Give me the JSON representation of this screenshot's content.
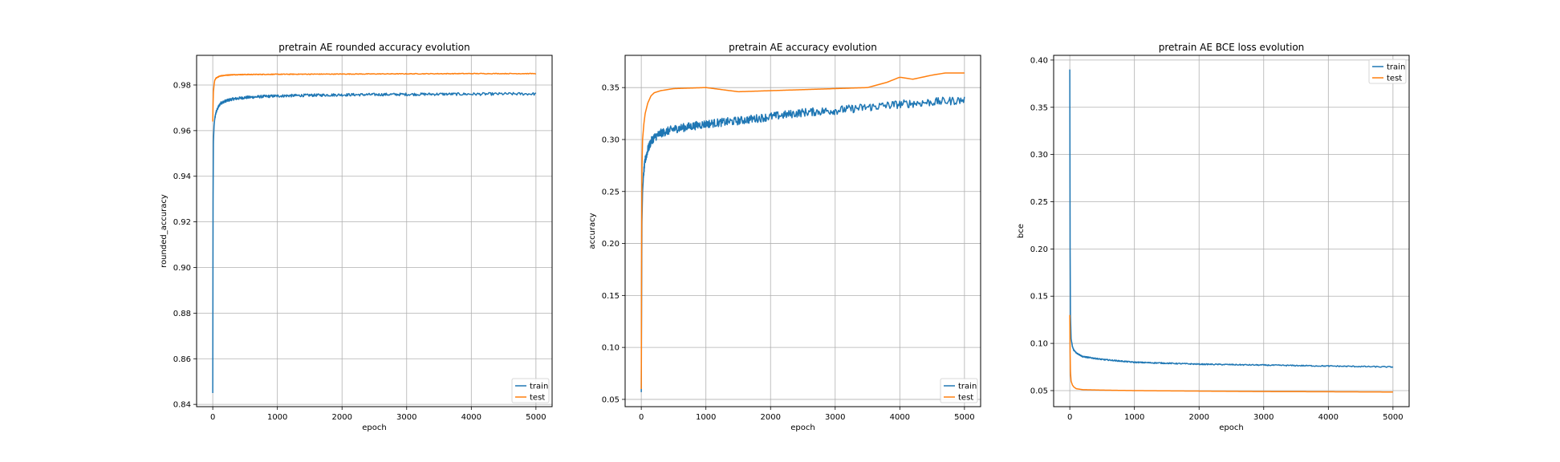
{
  "colors": {
    "train": "#1f77b4",
    "test": "#ff7f0e",
    "grid": "#b0b0b0"
  },
  "chart_data": [
    {
      "type": "line",
      "title": "pretrain AE rounded accuracy evolution",
      "xlabel": "epoch",
      "ylabel": "rounded_accuracy",
      "xlim": [
        -250,
        5250
      ],
      "ylim": [
        0.839,
        0.993
      ],
      "xticks": [
        0,
        1000,
        2000,
        3000,
        4000,
        5000
      ],
      "yticks": [
        0.84,
        0.86,
        0.88,
        0.9,
        0.92,
        0.94,
        0.96,
        0.98
      ],
      "ytick_labels": [
        "0.84",
        "0.86",
        "0.88",
        "0.90",
        "0.92",
        "0.94",
        "0.96",
        "0.98"
      ],
      "grid": true,
      "legend_position": "bottom-right",
      "series": [
        {
          "name": "train",
          "noise": 0.0006,
          "x": [
            0,
            5,
            10,
            20,
            30,
            50,
            80,
            120,
            200,
            300,
            500,
            800,
            1000,
            1500,
            2000,
            2500,
            3000,
            3500,
            4000,
            4500,
            5000
          ],
          "y": [
            0.845,
            0.93,
            0.955,
            0.962,
            0.965,
            0.968,
            0.97,
            0.972,
            0.973,
            0.9738,
            0.9745,
            0.975,
            0.9752,
            0.9755,
            0.9757,
            0.9758,
            0.9759,
            0.976,
            0.976,
            0.9761,
            0.9761
          ]
        },
        {
          "name": "test",
          "noise": 0.00015,
          "x": [
            0,
            5,
            10,
            20,
            30,
            50,
            80,
            120,
            200,
            300,
            500,
            1000,
            2000,
            3000,
            4000,
            5000
          ],
          "y": [
            0.964,
            0.972,
            0.977,
            0.98,
            0.982,
            0.983,
            0.9835,
            0.984,
            0.9843,
            0.9845,
            0.9846,
            0.9847,
            0.9848,
            0.9849,
            0.985,
            0.985
          ]
        }
      ]
    },
    {
      "type": "line",
      "title": "pretrain AE accuracy evolution",
      "xlabel": "epoch",
      "ylabel": "accuracy",
      "xlim": [
        -250,
        5250
      ],
      "ylim": [
        0.043,
        0.381
      ],
      "xticks": [
        0,
        1000,
        2000,
        3000,
        4000,
        5000
      ],
      "yticks": [
        0.05,
        0.1,
        0.15,
        0.2,
        0.25,
        0.3,
        0.35
      ],
      "ytick_labels": [
        "0.05",
        "0.10",
        "0.15",
        "0.20",
        "0.25",
        "0.30",
        "0.35"
      ],
      "grid": true,
      "legend_position": "bottom-right",
      "series": [
        {
          "name": "train",
          "noise": 0.004,
          "x": [
            0,
            5,
            10,
            20,
            40,
            60,
            100,
            150,
            200,
            300,
            500,
            1000,
            1500,
            2000,
            2500,
            3000,
            3500,
            4000,
            4500,
            5000
          ],
          "y": [
            0.057,
            0.15,
            0.22,
            0.25,
            0.27,
            0.28,
            0.29,
            0.298,
            0.302,
            0.306,
            0.31,
            0.315,
            0.318,
            0.322,
            0.326,
            0.328,
            0.331,
            0.334,
            0.336,
            0.338
          ]
        },
        {
          "name": "test",
          "noise": 0,
          "x": [
            0,
            5,
            10,
            20,
            40,
            60,
            100,
            150,
            200,
            300,
            500,
            1000,
            1500,
            2000,
            2500,
            3000,
            3500,
            3800,
            4000,
            4200,
            4500,
            4700,
            5000
          ],
          "y": [
            0.06,
            0.2,
            0.27,
            0.3,
            0.315,
            0.325,
            0.335,
            0.342,
            0.345,
            0.347,
            0.349,
            0.35,
            0.346,
            0.347,
            0.348,
            0.349,
            0.35,
            0.355,
            0.36,
            0.358,
            0.362,
            0.364,
            0.364
          ]
        }
      ]
    },
    {
      "type": "line",
      "title": "pretrain AE BCE loss evolution",
      "xlabel": "epoch",
      "ylabel": "bce",
      "xlim": [
        -250,
        5250
      ],
      "ylim": [
        0.033,
        0.405
      ],
      "xticks": [
        0,
        1000,
        2000,
        3000,
        4000,
        5000
      ],
      "yticks": [
        0.05,
        0.1,
        0.15,
        0.2,
        0.25,
        0.3,
        0.35,
        0.4
      ],
      "ytick_labels": [
        "0.05",
        "0.10",
        "0.15",
        "0.20",
        "0.25",
        "0.30",
        "0.35",
        "0.40"
      ],
      "grid": true,
      "legend_position": "top-right",
      "series": [
        {
          "name": "train",
          "noise": 0.0006,
          "x": [
            0,
            5,
            10,
            20,
            40,
            60,
            100,
            200,
            500,
            1000,
            1500,
            2000,
            2500,
            3000,
            3500,
            4000,
            4500,
            5000
          ],
          "y": [
            0.39,
            0.2,
            0.13,
            0.105,
            0.097,
            0.093,
            0.09,
            0.086,
            0.083,
            0.08,
            0.079,
            0.078,
            0.0775,
            0.077,
            0.0765,
            0.076,
            0.0755,
            0.075
          ]
        },
        {
          "name": "test",
          "noise": 0,
          "x": [
            0,
            5,
            10,
            20,
            40,
            60,
            100,
            200,
            500,
            1000,
            2000,
            3000,
            4000,
            5000
          ],
          "y": [
            0.13,
            0.09,
            0.07,
            0.06,
            0.056,
            0.054,
            0.052,
            0.051,
            0.0505,
            0.05,
            0.0495,
            0.049,
            0.0488,
            0.0485
          ]
        }
      ]
    }
  ]
}
